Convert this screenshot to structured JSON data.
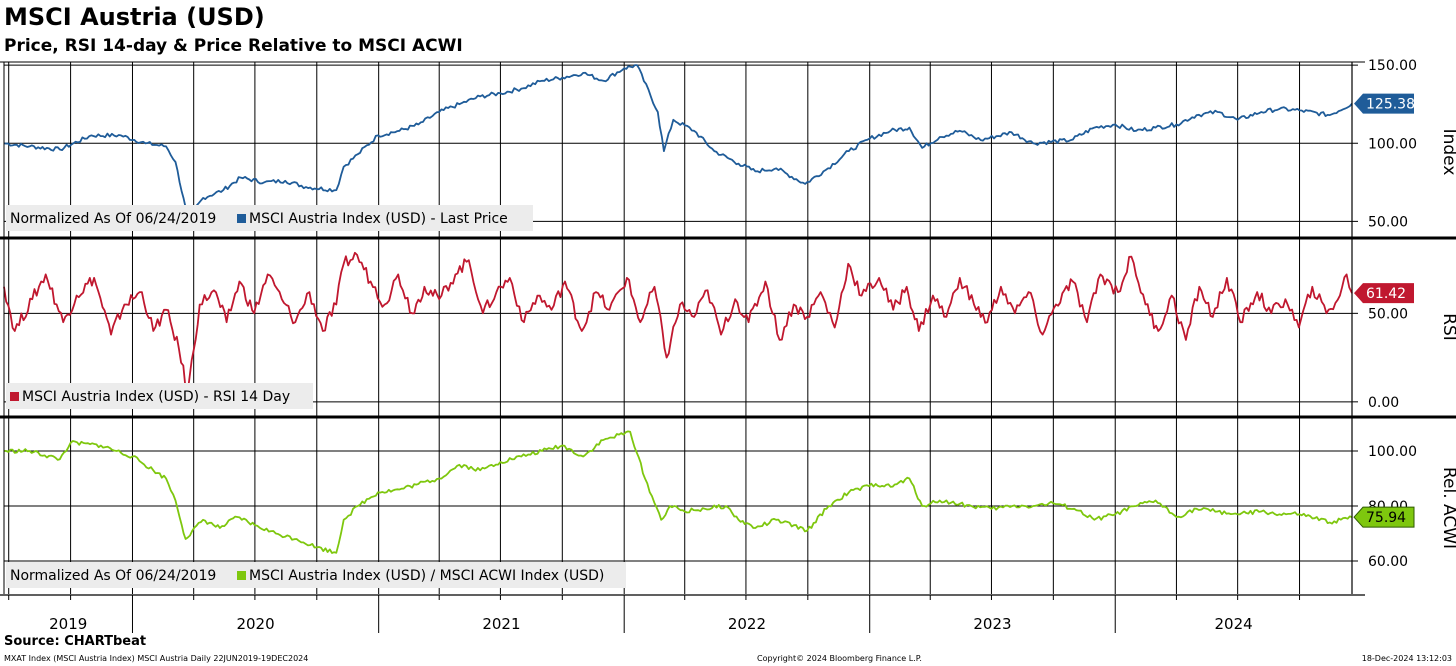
{
  "title": "MSCI Austria (USD)",
  "subtitle": "Price, RSI 14-day & Price Relative to MSCI ACWI",
  "footer": {
    "source": "Source: CHARTbeat",
    "left": "MXAT Index (MSCI Austria Index) MSCI Austria  Daily 22JUN2019-19DEC2024",
    "copyright": "Copyright© 2024 Bloomberg Finance L.P.",
    "timestamp": "18-Dec-2024 13:12:03"
  },
  "colors": {
    "price": "#1f5c99",
    "rsi": "#c0182f",
    "rel": "#7ec70e",
    "grid": "#000000"
  },
  "chart_data": [
    {
      "type": "line",
      "panel": "price",
      "ylabel": "Index",
      "ylim": [
        40,
        152
      ],
      "yticks": [
        "150.00",
        "100.00",
        "50.00"
      ],
      "legend_prefix": "Normalized As Of 06/24/2019",
      "series": [
        {
          "name": "MSCI Austria Index (USD) - Last Price",
          "last_value": "125.38",
          "x": [
            "2019-06-24",
            "2019-08-01",
            "2019-09-15",
            "2019-11-01",
            "2019-12-15",
            "2020-01-20",
            "2020-02-20",
            "2020-03-05",
            "2020-03-23",
            "2020-04-15",
            "2020-05-15",
            "2020-06-10",
            "2020-07-15",
            "2020-08-15",
            "2020-09-15",
            "2020-10-30",
            "2020-11-10",
            "2020-12-01",
            "2020-12-31",
            "2021-02-01",
            "2021-03-01",
            "2021-04-01",
            "2021-05-01",
            "2021-06-01",
            "2021-07-01",
            "2021-08-01",
            "2021-09-01",
            "2021-10-01",
            "2021-11-01",
            "2021-12-01",
            "2022-01-01",
            "2022-01-20",
            "2022-02-20",
            "2022-03-01",
            "2022-03-15",
            "2022-04-15",
            "2022-05-15",
            "2022-06-20",
            "2022-07-15",
            "2022-08-15",
            "2022-09-27",
            "2022-10-31",
            "2022-12-01",
            "2023-01-01",
            "2023-02-01",
            "2023-03-01",
            "2023-03-20",
            "2023-04-15",
            "2023-05-15",
            "2023-06-15",
            "2023-07-31",
            "2023-09-01",
            "2023-10-27",
            "2023-12-01",
            "2024-01-01",
            "2024-02-01",
            "2024-03-01",
            "2024-04-01",
            "2024-05-01",
            "2024-06-01",
            "2024-07-01",
            "2024-08-05",
            "2024-09-01",
            "2024-10-01",
            "2024-11-15",
            "2024-12-18"
          ],
          "values": [
            100,
            98,
            96,
            105,
            105,
            100,
            98,
            88,
            52,
            65,
            70,
            78,
            75,
            76,
            72,
            70,
            85,
            93,
            105,
            108,
            112,
            120,
            125,
            130,
            132,
            135,
            140,
            142,
            145,
            140,
            148,
            150,
            120,
            95,
            115,
            108,
            95,
            87,
            82,
            84,
            74,
            84,
            95,
            103,
            108,
            110,
            97,
            104,
            108,
            102,
            107,
            100,
            102,
            110,
            112,
            108,
            110,
            112,
            118,
            120,
            115,
            120,
            122,
            121,
            118,
            125.38
          ]
        }
      ]
    },
    {
      "type": "line",
      "panel": "rsi",
      "ylabel": "RSI",
      "ylim": [
        -8,
        92
      ],
      "yticks": [
        "50.00",
        "0.00"
      ],
      "legend_prefix": "",
      "series": [
        {
          "name": "MSCI Austria Index (USD) - RSI 14 Day",
          "last_value": "61.42",
          "x": [
            "2019-06-24",
            "2019-07-10",
            "2019-08-05",
            "2019-08-25",
            "2019-09-20",
            "2019-10-10",
            "2019-11-05",
            "2019-11-30",
            "2019-12-20",
            "2020-01-15",
            "2020-02-01",
            "2020-02-20",
            "2020-03-10",
            "2020-03-23",
            "2020-04-10",
            "2020-05-01",
            "2020-05-20",
            "2020-06-08",
            "2020-06-30",
            "2020-07-20",
            "2020-08-10",
            "2020-08-30",
            "2020-09-20",
            "2020-10-10",
            "2020-10-30",
            "2020-11-10",
            "2020-11-30",
            "2020-12-20",
            "2021-01-10",
            "2021-01-30",
            "2021-02-20",
            "2021-03-10",
            "2021-04-01",
            "2021-04-25",
            "2021-05-15",
            "2021-06-05",
            "2021-06-25",
            "2021-07-15",
            "2021-08-05",
            "2021-08-25",
            "2021-09-15",
            "2021-10-05",
            "2021-10-30",
            "2021-11-20",
            "2021-12-10",
            "2022-01-05",
            "2022-01-25",
            "2022-02-15",
            "2022-03-05",
            "2022-03-25",
            "2022-04-15",
            "2022-05-05",
            "2022-05-25",
            "2022-06-15",
            "2022-07-05",
            "2022-07-30",
            "2022-08-20",
            "2022-09-10",
            "2022-09-30",
            "2022-10-20",
            "2022-11-10",
            "2022-11-30",
            "2022-12-20",
            "2023-01-15",
            "2023-02-05",
            "2023-02-25",
            "2023-03-15",
            "2023-04-05",
            "2023-04-25",
            "2023-05-15",
            "2023-06-05",
            "2023-06-25",
            "2023-07-15",
            "2023-08-05",
            "2023-08-25",
            "2023-09-15",
            "2023-10-05",
            "2023-10-30",
            "2023-11-20",
            "2023-12-10",
            "2024-01-05",
            "2024-01-25",
            "2024-02-15",
            "2024-03-05",
            "2024-03-25",
            "2024-04-15",
            "2024-05-05",
            "2024-05-25",
            "2024-06-15",
            "2024-07-05",
            "2024-07-30",
            "2024-08-20",
            "2024-09-10",
            "2024-09-30",
            "2024-10-20",
            "2024-11-10",
            "2024-11-30",
            "2024-12-10",
            "2024-12-18"
          ],
          "values": [
            65,
            40,
            58,
            72,
            45,
            60,
            70,
            38,
            55,
            62,
            40,
            52,
            30,
            5,
            55,
            63,
            45,
            68,
            50,
            72,
            58,
            45,
            62,
            40,
            55,
            78,
            83,
            68,
            55,
            72,
            50,
            65,
            58,
            72,
            80,
            50,
            62,
            70,
            45,
            60,
            52,
            68,
            40,
            62,
            52,
            70,
            45,
            65,
            25,
            55,
            48,
            63,
            38,
            58,
            45,
            68,
            35,
            55,
            48,
            62,
            42,
            78,
            60,
            70,
            52,
            65,
            40,
            60,
            48,
            70,
            55,
            45,
            65,
            50,
            62,
            38,
            55,
            68,
            45,
            72,
            62,
            82,
            55,
            40,
            60,
            35,
            65,
            48,
            70,
            45,
            62,
            50,
            58,
            42,
            65,
            50,
            60,
            72,
            61.42
          ]
        }
      ]
    },
    {
      "type": "line",
      "panel": "relative",
      "ylabel": "Rel. ACWI",
      "ylim": [
        48,
        112
      ],
      "yticks": [
        "100.00",
        "80.00",
        "60.00"
      ],
      "legend_prefix": "Normalized As Of 06/24/2019",
      "series": [
        {
          "name": "MSCI Austria Index (USD) / MSCI ACWI Index (USD)",
          "last_value": "75.94",
          "x": [
            "2019-06-24",
            "2019-08-01",
            "2019-09-15",
            "2019-10-01",
            "2019-11-15",
            "2020-01-01",
            "2020-02-01",
            "2020-02-20",
            "2020-03-05",
            "2020-03-20",
            "2020-04-15",
            "2020-05-10",
            "2020-06-05",
            "2020-07-01",
            "2020-08-01",
            "2020-09-01",
            "2020-10-01",
            "2020-10-30",
            "2020-11-10",
            "2020-12-01",
            "2020-12-31",
            "2021-02-01",
            "2021-03-01",
            "2021-04-01",
            "2021-05-01",
            "2021-06-01",
            "2021-07-01",
            "2021-08-01",
            "2021-09-01",
            "2021-10-01",
            "2021-11-01",
            "2021-12-01",
            "2022-01-10",
            "2022-02-01",
            "2022-02-25",
            "2022-03-10",
            "2022-04-01",
            "2022-05-01",
            "2022-06-01",
            "2022-06-20",
            "2022-07-15",
            "2022-08-15",
            "2022-09-30",
            "2022-11-01",
            "2022-12-01",
            "2023-01-10",
            "2023-02-01",
            "2023-03-01",
            "2023-03-20",
            "2023-04-15",
            "2023-06-01",
            "2023-07-01",
            "2023-08-01",
            "2023-09-01",
            "2023-10-01",
            "2023-11-01",
            "2023-12-01",
            "2024-01-01",
            "2024-02-01",
            "2024-03-01",
            "2024-04-01",
            "2024-05-01",
            "2024-06-01",
            "2024-07-01",
            "2024-08-05",
            "2024-09-01",
            "2024-10-01",
            "2024-11-15",
            "2024-12-18"
          ],
          "values": [
            100,
            100,
            97,
            103,
            102,
            98,
            93,
            90,
            82,
            68,
            75,
            72,
            76,
            73,
            70,
            68,
            65,
            63,
            75,
            80,
            85,
            86,
            88,
            90,
            95,
            93,
            96,
            98,
            100,
            102,
            98,
            104,
            107,
            90,
            75,
            80,
            78,
            79,
            80,
            75,
            72,
            75,
            71,
            80,
            85,
            88,
            87,
            90,
            80,
            82,
            80,
            79,
            80,
            80,
            81,
            79,
            75,
            77,
            80,
            82,
            76,
            79,
            78,
            77,
            78,
            77,
            77,
            74,
            75.94
          ]
        }
      ]
    }
  ],
  "xaxis": {
    "year_labels": [
      "2019",
      "2020",
      "2021",
      "2022",
      "2023",
      "2024"
    ]
  }
}
